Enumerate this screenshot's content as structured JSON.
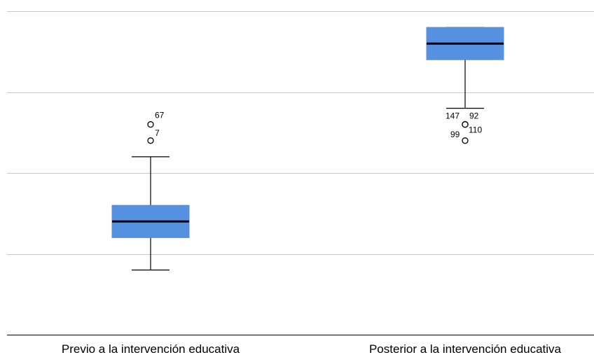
{
  "chart_data": {
    "type": "boxplot",
    "title": "",
    "xlabel": "",
    "ylabel": "",
    "ylim": [
      0,
      4
    ],
    "gridlines": [
      1,
      2,
      3,
      4
    ],
    "grid": true,
    "box_color": "#5591e0",
    "categories": [
      "Previo a la intervención educativa",
      "Posterior a la intervención educativa"
    ],
    "boxes": [
      {
        "category": "Previo a la intervención educativa",
        "whisker_low": 0.8,
        "q1": 1.2,
        "median": 1.4,
        "q3": 1.6,
        "whisker_high": 2.2,
        "outliers": [
          {
            "label": "67",
            "value": 2.6
          },
          {
            "label": "7",
            "value": 2.4
          }
        ]
      },
      {
        "category": "Posterior a la intervención educativa",
        "whisker_low": 2.8,
        "q1": 3.4,
        "median": 3.6,
        "q3": 3.8,
        "whisker_high": 3.8,
        "outliers": [
          {
            "label": "147",
            "value": 2.6
          },
          {
            "label": "92",
            "value": 2.6
          },
          {
            "label": "110",
            "value": 2.6
          },
          {
            "label": "99",
            "value": 2.4
          }
        ]
      }
    ]
  }
}
